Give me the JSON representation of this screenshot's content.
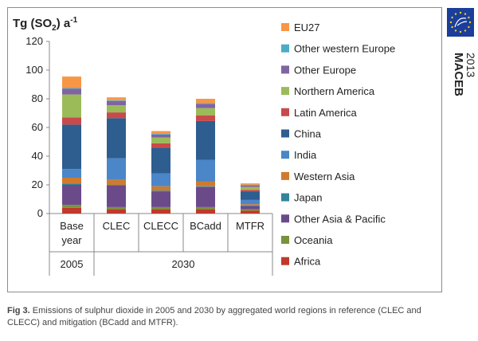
{
  "chart_data": {
    "type": "bar",
    "stacked": true,
    "ylabel_main": "Tg (SO",
    "ylabel_sub": "2",
    "ylabel_tail": ") a",
    "ylabel_sup": "-1",
    "ylim": [
      0,
      120
    ],
    "yticks": [
      0,
      20,
      40,
      60,
      80,
      100,
      120
    ],
    "grid": false,
    "legend_placement": "right",
    "categories": [
      {
        "line1": "Base",
        "line2": "year"
      },
      {
        "line1": "CLEC",
        "line2": ""
      },
      {
        "line1": "CLECC",
        "line2": ""
      },
      {
        "line1": "BCadd",
        "line2": ""
      },
      {
        "line1": "MTFR",
        "line2": ""
      }
    ],
    "groups": [
      {
        "label": "2005",
        "span": [
          0,
          0
        ]
      },
      {
        "label": "2030",
        "span": [
          1,
          4
        ]
      }
    ],
    "series": [
      {
        "name": "Africa",
        "color": "#c0392b",
        "values": [
          4,
          3,
          3,
          3,
          2
        ]
      },
      {
        "name": "Oceania",
        "color": "#77933c",
        "values": [
          2,
          1.5,
          1.5,
          1.5,
          1
        ]
      },
      {
        "name": "Other Asia & Pacific",
        "color": "#6b4a8a",
        "values": [
          14,
          15,
          11,
          14,
          2
        ]
      },
      {
        "name": "Japan",
        "color": "#31849b",
        "values": [
          1,
          0.5,
          0.5,
          0.5,
          0.5
        ]
      },
      {
        "name": "Western Asia",
        "color": "#d07a2e",
        "values": [
          4,
          3.5,
          3,
          3.5,
          1
        ]
      },
      {
        "name": "India",
        "color": "#4a86c8",
        "values": [
          6,
          15,
          9,
          15,
          3
        ]
      },
      {
        "name": "China",
        "color": "#2e5d8f",
        "values": [
          31,
          28,
          18,
          27,
          6
        ]
      },
      {
        "name": "Latin America",
        "color": "#c94a4a",
        "values": [
          5,
          4,
          3,
          4,
          1
        ]
      },
      {
        "name": "Northern America",
        "color": "#9bbb59",
        "values": [
          16,
          5,
          4,
          5,
          2
        ]
      },
      {
        "name": "Other Europe",
        "color": "#8064a2",
        "values": [
          4,
          3,
          2,
          3,
          1
        ]
      },
      {
        "name": "Other western Europe",
        "color": "#4bacc6",
        "values": [
          0.5,
          0.5,
          0.5,
          0.5,
          0.5
        ]
      },
      {
        "name": "EU27",
        "color": "#f79646",
        "values": [
          8,
          2,
          2,
          3,
          1
        ]
      }
    ]
  },
  "caption": {
    "label": "Fig 3.",
    "text": " Emissions of sulphur dioxide in 2005 and 2030 by aggregated world regions in reference (CLEC and CLECC) and mitigation (BCadd and MTFR)."
  },
  "branding": {
    "name": "MACEB",
    "year": "2013",
    "logo_color": "#1a3e9a",
    "star_color": "#f5d020"
  }
}
